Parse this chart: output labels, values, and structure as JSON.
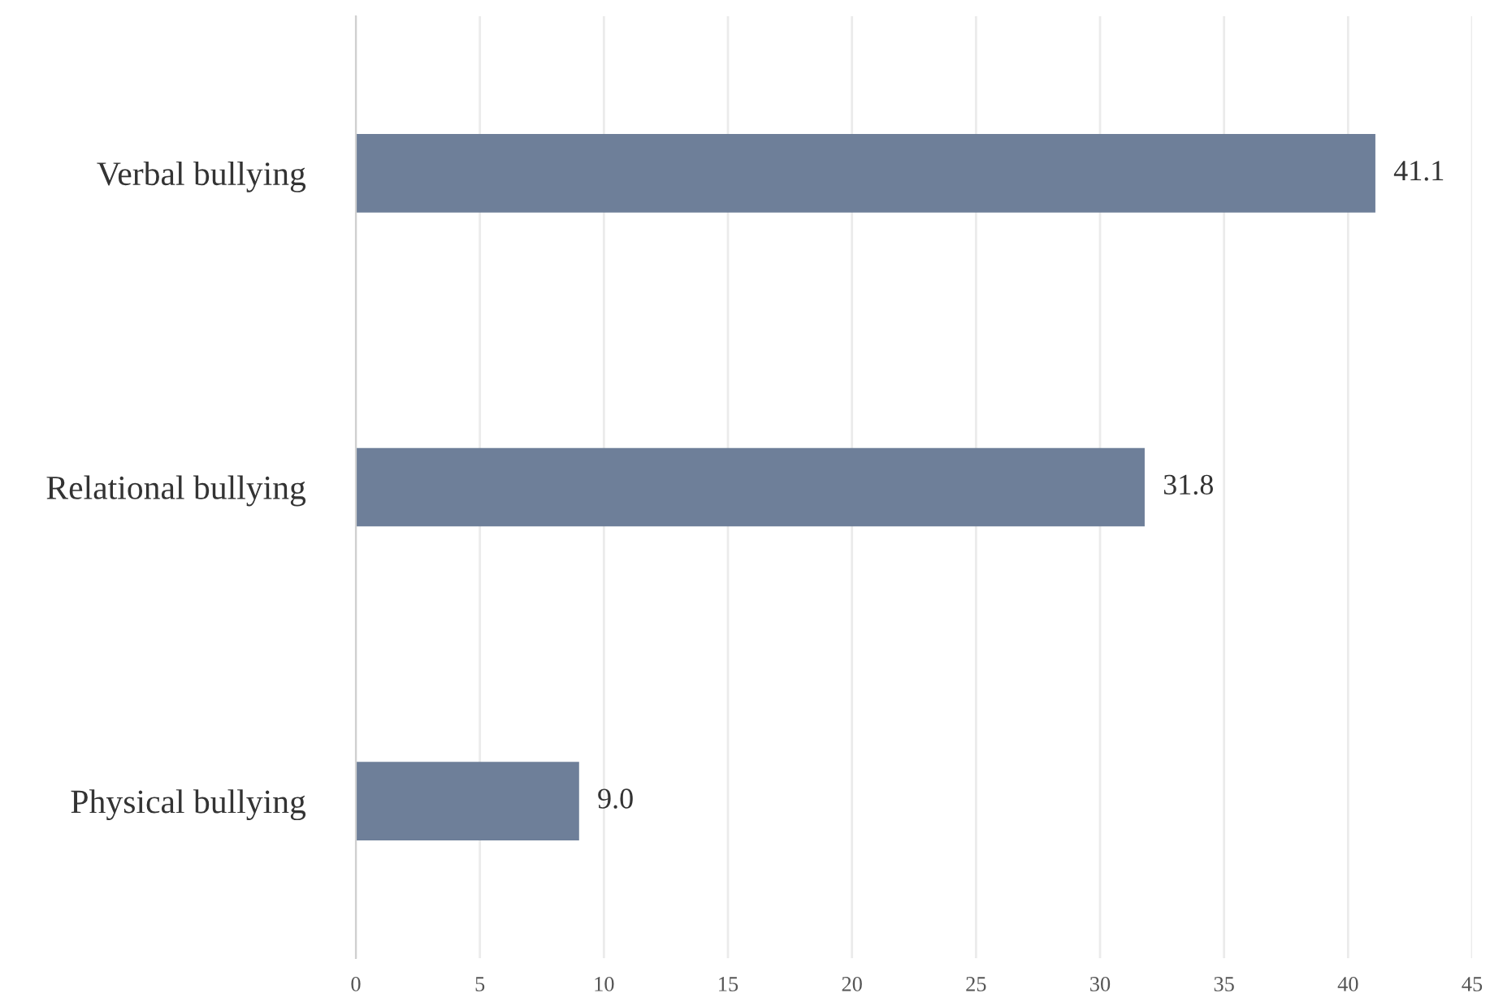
{
  "chart_data": {
    "type": "bar",
    "orientation": "horizontal",
    "categories": [
      "Verbal bullying",
      "Relational bullying",
      "Physical bullying"
    ],
    "values": [
      41.1,
      31.8,
      9.0
    ],
    "value_labels": [
      "41.1",
      "31.8",
      "9.0"
    ],
    "color": "#6e7f99",
    "xlim": [
      0,
      45
    ],
    "xticks": [
      0,
      5,
      10,
      15,
      20,
      25,
      30,
      35,
      40,
      45
    ],
    "grid": "x",
    "legend": false
  }
}
